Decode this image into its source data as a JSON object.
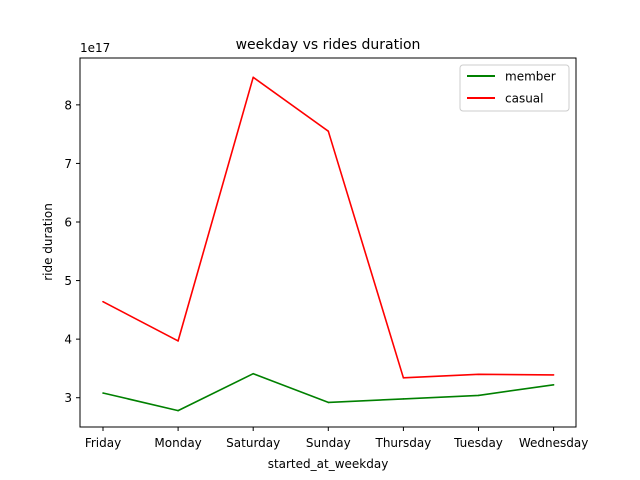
{
  "chart_data": {
    "type": "line",
    "title": "weekday vs rides duration",
    "xlabel": "started_at_weekday",
    "ylabel": "ride duration",
    "y_offset_label": "1e17",
    "categories": [
      "Friday",
      "Monday",
      "Saturday",
      "Sunday",
      "Thursday",
      "Tuesday",
      "Wednesday"
    ],
    "y_ticks": [
      "3",
      "4",
      "5",
      "6",
      "7",
      "8"
    ],
    "y_tick_values": [
      3,
      4,
      5,
      6,
      7,
      8
    ],
    "ylim": [
      2.5,
      8.8
    ],
    "grid": false,
    "legend_position": "top-right",
    "series": [
      {
        "name": "member",
        "color": "#008000",
        "values": [
          3.08,
          2.78,
          3.41,
          2.92,
          2.98,
          3.04,
          3.22
        ]
      },
      {
        "name": "casual",
        "color": "#ff0000",
        "values": [
          4.64,
          3.97,
          8.47,
          7.55,
          3.34,
          3.4,
          3.39
        ]
      }
    ]
  }
}
